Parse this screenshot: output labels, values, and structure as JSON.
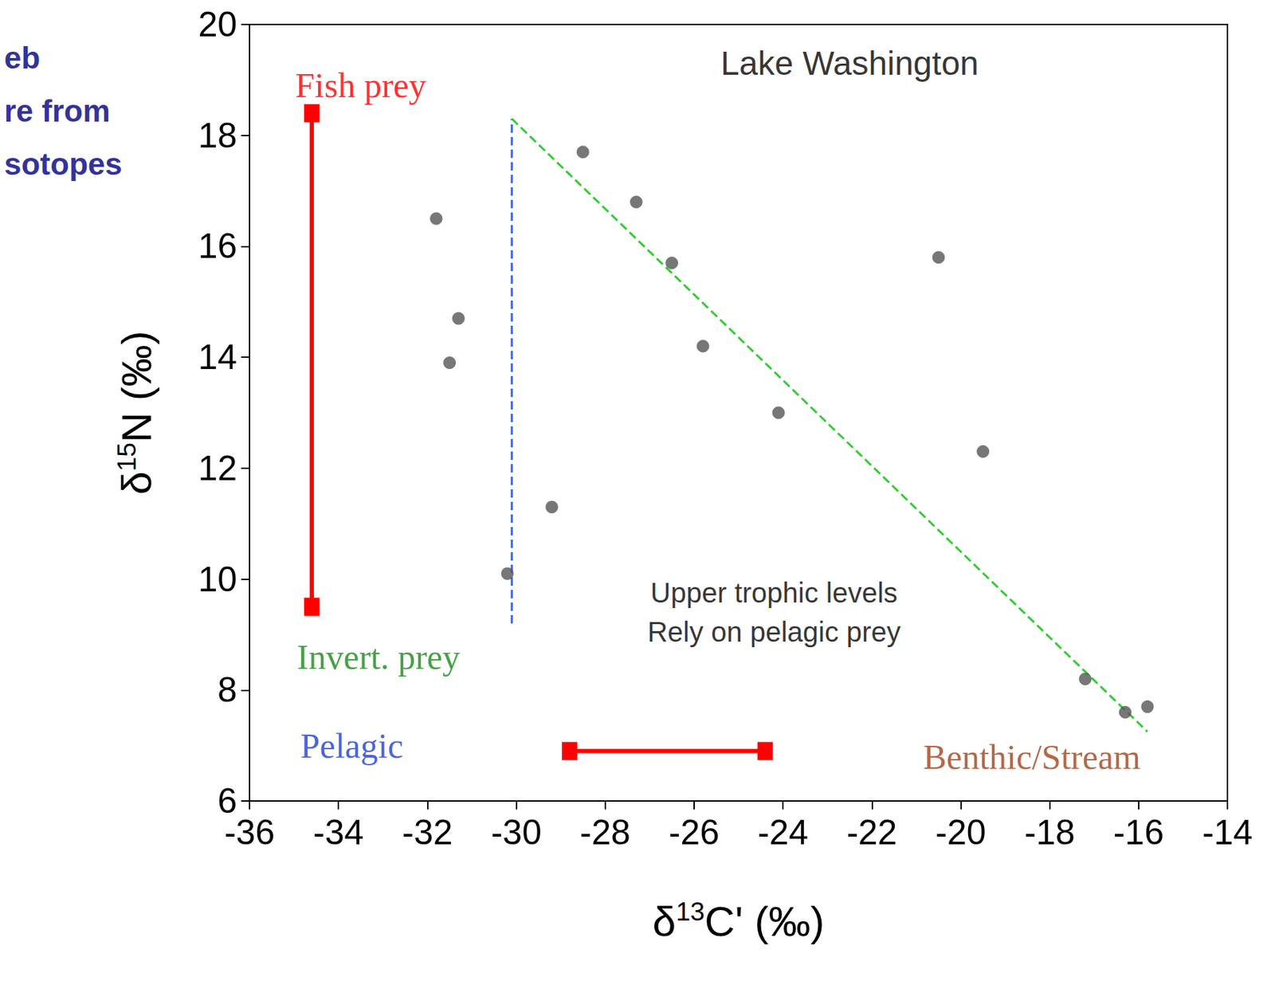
{
  "chart_data": {
    "type": "scatter",
    "title": "eb\nre from\nsotopes",
    "x_label": "δ13C' (‰)",
    "y_label": "δ15N (‰)",
    "xlim": [
      -36,
      -14
    ],
    "xticks": [
      -36,
      -34,
      -32,
      -30,
      -28,
      -26,
      -24,
      -22,
      -20,
      -18,
      -16,
      -14
    ],
    "ylim": [
      6,
      20
    ],
    "yticks": [
      6,
      8,
      10,
      12,
      14,
      16,
      18,
      20
    ],
    "grid": false,
    "tick_labels": true,
    "series": [
      {
        "color": "#555555",
        "marker": "circle",
        "x": [
          -28.5,
          -27.3,
          -26.5,
          -20.5,
          -31.8,
          -31.3,
          -31.5,
          -25.8,
          -24.1,
          -19.5,
          -29.2,
          -30.2,
          -17.2,
          -16.3,
          -15.8
        ],
        "y": [
          17.7,
          16.8,
          15.7,
          15.8,
          16.5,
          14.7,
          13.9,
          14.2,
          13.0,
          12.3,
          11.3,
          10.1,
          8.2,
          7.6,
          7.7
        ]
      }
    ],
    "lines": [
      {
        "color": "#3366ff",
        "line_style": "dashed",
        "x": [
          -30.1,
          -30.1
        ],
        "y": [
          9.2,
          18.3
        ]
      },
      {
        "color": "#33cc33",
        "line_style": "dashed",
        "x": [
          -30.1,
          -15.8
        ],
        "y": [
          18.3,
          7.25
        ]
      }
    ],
    "arrows": [
      {
        "color": "#ff0000",
        "x": [
          -34.6,
          -34.6
        ],
        "y": [
          9.5,
          18.4
        ]
      },
      {
        "color": "#ff0000",
        "x": [
          -24.4,
          -28.8
        ],
        "y": [
          6.9,
          6.9
        ]
      }
    ],
    "annotations": [
      {
        "text": "Lake Washington",
        "x": -22.5,
        "y": 19.3,
        "color": "#000000"
      },
      {
        "text": "Fish prey",
        "x": -33.5,
        "y": 18.9,
        "color": "#ff0000"
      },
      {
        "text": "Invert. prey",
        "x": -33.1,
        "y": 8.6,
        "color": "#1a8a1a"
      },
      {
        "text": "Pelagic",
        "x": -33.7,
        "y": 7.0,
        "color": "#1f3fd6"
      },
      {
        "text": "Benthic/Stream",
        "x": -18.4,
        "y": 6.8,
        "color": "#a0441a"
      },
      {
        "text": "Upper trophic levels\nRely on pelagic prey",
        "x": -24.2,
        "y": 9.4,
        "color": "#000000"
      }
    ]
  }
}
